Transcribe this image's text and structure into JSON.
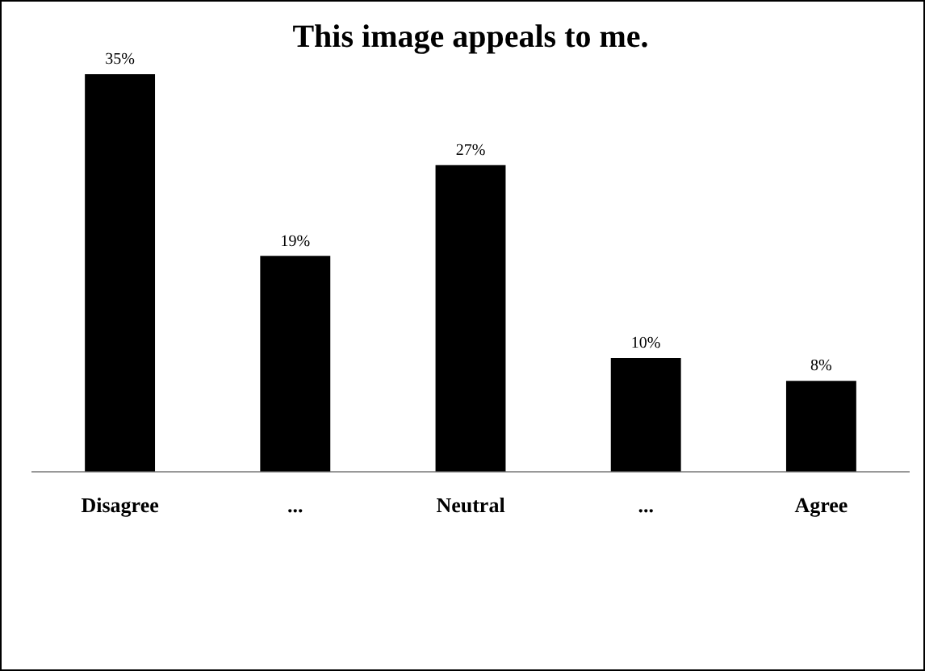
{
  "chart_data": {
    "type": "bar",
    "title": "This image appeals to me.",
    "categories": [
      "Disagree",
      "...",
      "Neutral",
      "...",
      "Agree"
    ],
    "values": [
      35,
      19,
      27,
      10,
      8
    ],
    "value_labels": [
      "35%",
      "19%",
      "27%",
      "10%",
      "8%"
    ],
    "color": "#000000",
    "grid": false,
    "legend": false
  }
}
